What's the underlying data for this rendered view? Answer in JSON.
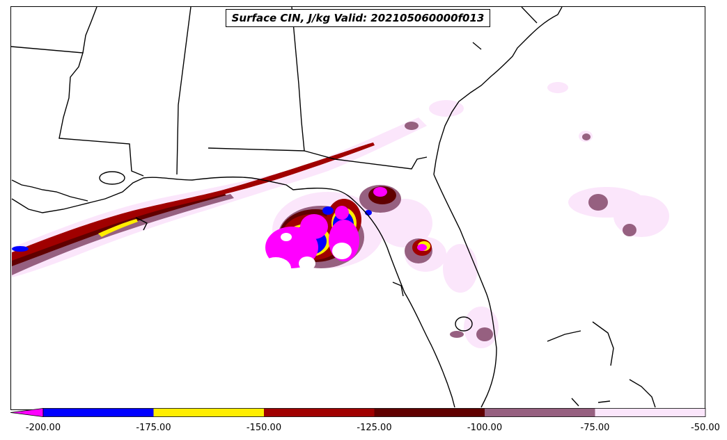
{
  "title": "Surface CIN, J/kg Valid: 202105060000f013",
  "colorbar": {
    "bins": [
      {
        "from": -200,
        "to": -175,
        "color": "#0000ff"
      },
      {
        "from": -175,
        "to": -150,
        "color": "#ffee00"
      },
      {
        "from": -150,
        "to": -125,
        "color": "#a00000"
      },
      {
        "from": -125,
        "to": -100,
        "color": "#600000"
      },
      {
        "from": -100,
        "to": -75,
        "color": "#966080"
      },
      {
        "from": -75,
        "to": -50,
        "color": "#fbe6fb"
      }
    ],
    "extend_color": "#ff00ff",
    "ticks": [
      "-200.00",
      "-175.00",
      "-150.00",
      "-125.00",
      "-100.00",
      "-75.00",
      "-50.00"
    ]
  }
}
